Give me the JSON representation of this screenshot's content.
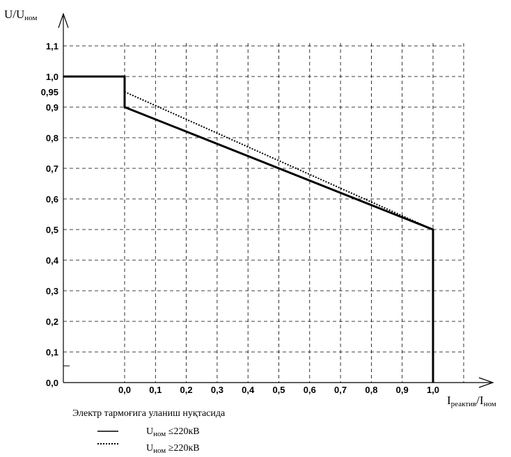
{
  "chart_data": {
    "type": "line",
    "ylabel": {
      "main": "U/U",
      "sub": "ном"
    },
    "xlabel": {
      "main1": "I",
      "sub1": "реактив",
      "main2": "/I",
      "sub2": "ном"
    },
    "x_ticks": [
      "0,0",
      "0,1",
      "0,2",
      "0,3",
      "0,4",
      "0,5",
      "0,6",
      "0,7",
      "0,8",
      "0,9",
      "1,0"
    ],
    "y_ticks": [
      "0,0",
      "0,1",
      "0,2",
      "0,3",
      "0,4",
      "0,5",
      "0,6",
      "0,7",
      "0,8",
      "0,9",
      "1,0",
      "1,1"
    ],
    "y_extra_tick": "0,95",
    "grid": true,
    "series": [
      {
        "style": "solid",
        "points": [
          [
            -0.2,
            1.0
          ],
          [
            0.0,
            1.0
          ],
          [
            0.0,
            0.9
          ],
          [
            1.0,
            0.5
          ],
          [
            1.0,
            0.0
          ]
        ]
      },
      {
        "style": "dotted",
        "points": [
          [
            0.0,
            0.95
          ],
          [
            1.0,
            0.5
          ]
        ]
      }
    ],
    "legend": {
      "title": "Электр тармоғига уланиш нуқтасида",
      "entries": [
        {
          "style": "solid",
          "main": "U",
          "sub": "ном",
          "rest": " ≤220кВ"
        },
        {
          "style": "dotted",
          "main": "U",
          "sub": "ном",
          "rest": " ≥220кВ"
        }
      ]
    }
  }
}
